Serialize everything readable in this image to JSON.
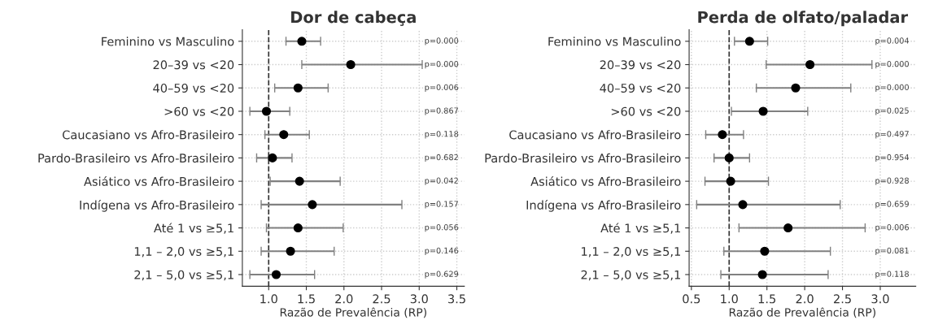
{
  "chart_data": [
    {
      "type": "scatter",
      "orientation": "horizontal",
      "title": "Dor de cabeça",
      "xlabel": "Razão de Prevalência (RP)",
      "categories": [
        "Feminino vs Masculino",
        "20–39 vs <20",
        "40–59 vs <20",
        ">60 vs <20",
        "Caucasiano vs Afro-Brasileiro",
        "Pardo-Brasileiro vs Afro-Brasileiro",
        "Asiático vs Afro-Brasileiro",
        "Indígena vs Afro-Brasileiro",
        "Até 1 vs ≥5,1",
        "1,1 – 2,0 vs ≥5,1",
        "2,1 – 5,0 vs ≥5,1"
      ],
      "series": [
        {
          "color": "#000000",
          "values": [
            1.44,
            2.09,
            1.39,
            0.97,
            1.2,
            1.05,
            1.41,
            1.58,
            1.39,
            1.29,
            1.1
          ],
          "errors": [
            [
              1.23,
              1.69
            ],
            [
              1.44,
              3.04
            ],
            [
              1.08,
              1.79
            ],
            [
              0.75,
              1.28
            ],
            [
              0.95,
              1.54
            ],
            [
              0.84,
              1.31
            ],
            [
              1.02,
              1.95
            ],
            [
              0.9,
              2.77
            ],
            [
              0.97,
              1.99
            ],
            [
              0.9,
              1.87
            ],
            [
              0.75,
              1.61
            ]
          ]
        }
      ],
      "xlim": [
        0.65,
        3.6
      ],
      "xticks": [
        {
          "value": 1.0,
          "label": "1.0"
        },
        {
          "value": 1.5,
          "label": "1.5"
        },
        {
          "value": 2.0,
          "label": "2.0"
        },
        {
          "value": 2.5,
          "label": "2.5"
        },
        {
          "value": 3.0,
          "label": "3.0"
        },
        {
          "value": 3.5,
          "label": "3.5"
        }
      ],
      "ref_lines": [
        {
          "axis": "x",
          "value": 1.0,
          "color": "#333333",
          "line_style": "dashed"
        }
      ],
      "grid": true,
      "marker": "circle",
      "annotations": [
        "p=0.000",
        "p=0.000",
        "p=0.006",
        "p=0.867",
        "p=0.118",
        "p=0.682",
        "p=0.042",
        "p=0.157",
        "p=0.056",
        "p=0.146",
        "p=0.629"
      ]
    },
    {
      "type": "scatter",
      "orientation": "horizontal",
      "title": "Perda de olfato/paladar",
      "xlabel": "Razão de Prevalência (RP)",
      "categories": [
        "Feminino vs Masculino",
        "20–39 vs <20",
        "40–59 vs <20",
        ">60 vs <20",
        "Caucasiano vs Afro-Brasileiro",
        "Pardo-Brasileiro vs Afro-Brasileiro",
        "Asiático vs Afro-Brasileiro",
        "Indígena vs Afro-Brasileiro",
        "Até 1 vs ≥5,1",
        "1,1 – 2,0 vs ≥5,1",
        "2,1 – 5,0 vs ≥5,1"
      ],
      "series": [
        {
          "color": "#000000",
          "values": [
            1.27,
            2.07,
            1.88,
            1.45,
            0.91,
            1.0,
            1.02,
            1.18,
            1.78,
            1.47,
            1.44
          ],
          "errors": [
            [
              1.07,
              1.51
            ],
            [
              1.49,
              2.89
            ],
            [
              1.36,
              2.61
            ],
            [
              1.03,
              2.04
            ],
            [
              0.69,
              1.19
            ],
            [
              0.8,
              1.27
            ],
            [
              0.68,
              1.52
            ],
            [
              0.57,
              2.47
            ],
            [
              1.13,
              2.8
            ],
            [
              0.93,
              2.34
            ],
            [
              0.89,
              2.31
            ]
          ]
        }
      ],
      "xlim": [
        0.47,
        3.47
      ],
      "xticks": [
        0.5,
        {
          "value": 1.0,
          "label": "1.0"
        },
        1.5,
        {
          "value": 2.0,
          "label": "2.0"
        },
        2.5,
        {
          "value": 3.0,
          "label": "3.0"
        }
      ],
      "ref_lines": [
        {
          "axis": "x",
          "value": 1.0,
          "color": "#333333",
          "line_style": "dashed"
        }
      ],
      "grid": true,
      "marker": "circle",
      "annotations": [
        "p=0.004",
        "p=0.000",
        "p=0.000",
        "p=0.025",
        "p=0.497",
        "p=0.954",
        "p=0.928",
        "p=0.659",
        "p=0.006",
        "p=0.081",
        "p=0.118"
      ]
    }
  ]
}
